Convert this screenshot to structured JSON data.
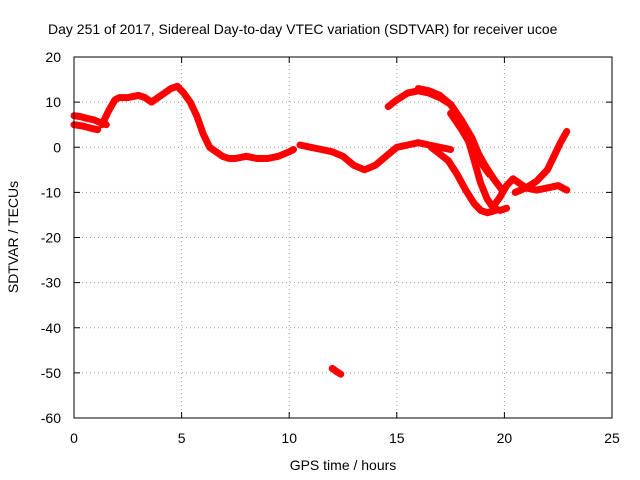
{
  "chart_data": {
    "type": "scatter",
    "title": "Day 251 of 2017, Sidereal Day-to-day VTEC variation (SDTVAR) for receiver ucoe",
    "xlabel": "GPS time / hours",
    "ylabel": "SDTVAR / TECUs",
    "xlim": [
      0,
      25
    ],
    "ylim": [
      -60,
      20
    ],
    "xticks": [
      0,
      5,
      10,
      15,
      20,
      25
    ],
    "yticks": [
      -60,
      -50,
      -40,
      -30,
      -20,
      -10,
      0,
      10,
      20
    ],
    "grid": true,
    "marker": "plus",
    "color": "#ff0000",
    "series": [
      {
        "name": "track-1",
        "x": [
          0.0,
          0.3,
          0.6,
          0.9,
          1.2,
          1.5
        ],
        "y": [
          7.0,
          6.8,
          6.4,
          6.1,
          5.5,
          5.0
        ]
      },
      {
        "name": "track-2",
        "x": [
          0.0,
          0.4,
          0.8,
          1.1
        ],
        "y": [
          5.0,
          4.7,
          4.2,
          3.9
        ]
      },
      {
        "name": "track-3",
        "x": [
          1.3,
          1.6,
          1.9,
          2.1,
          2.5,
          3.0,
          3.3,
          3.6,
          3.9,
          4.2,
          4.5,
          4.8,
          5.1,
          5.4,
          5.7,
          6.0,
          6.3,
          6.6,
          6.9,
          7.2,
          7.5,
          8.0,
          8.5,
          9.0,
          9.5,
          10.0,
          10.2
        ],
        "y": [
          5.0,
          8.0,
          10.5,
          11.0,
          11.0,
          11.5,
          11.0,
          10.0,
          11.0,
          12.0,
          13.0,
          13.5,
          12.0,
          10.0,
          7.0,
          3.0,
          0.0,
          -1.0,
          -2.0,
          -2.5,
          -2.5,
          -2.0,
          -2.5,
          -2.5,
          -2.0,
          -1.0,
          -0.5
        ]
      },
      {
        "name": "track-4",
        "x": [
          10.5,
          11.0,
          11.5,
          12.0,
          12.5,
          13.0,
          13.5,
          14.0,
          14.5,
          15.0,
          15.5,
          16.0,
          16.5,
          17.0,
          17.5
        ],
        "y": [
          0.5,
          0.0,
          -0.5,
          -1.0,
          -2.0,
          -4.0,
          -5.0,
          -4.0,
          -2.0,
          0.0,
          0.5,
          1.0,
          0.5,
          0.0,
          -0.5
        ]
      },
      {
        "name": "track-5",
        "x": [
          14.6,
          15.0,
          15.5,
          16.0,
          16.5,
          17.0,
          17.5,
          18.0,
          18.3,
          18.6,
          18.9,
          19.2,
          19.5,
          19.8,
          20.1
        ],
        "y": [
          9.0,
          10.5,
          12.0,
          12.5,
          12.0,
          11.0,
          9.5,
          6.0,
          2.0,
          -3.0,
          -8.0,
          -11.5,
          -13.5,
          -14.0,
          -13.5
        ]
      },
      {
        "name": "track-6",
        "x": [
          16.0,
          16.5,
          17.0,
          17.5,
          18.0,
          18.5,
          18.8,
          19.1,
          19.5,
          19.9
        ],
        "y": [
          13.0,
          12.5,
          11.5,
          9.5,
          6.0,
          2.0,
          -1.5,
          -4.0,
          -7.0,
          -9.5
        ]
      },
      {
        "name": "track-7",
        "x": [
          16.6,
          17.0,
          17.4,
          17.8,
          18.2,
          18.6,
          18.9,
          19.2,
          19.6
        ],
        "y": [
          0.0,
          -1.5,
          -3.0,
          -6.0,
          -9.5,
          -12.5,
          -14.0,
          -14.5,
          -14.0
        ]
      },
      {
        "name": "track-8",
        "x": [
          17.5,
          18.0,
          18.5,
          19.0,
          19.3
        ],
        "y": [
          7.5,
          4.0,
          0.0,
          -4.0,
          -6.0
        ]
      },
      {
        "name": "track-9",
        "x": [
          19.5,
          19.8,
          20.1,
          20.4,
          20.7,
          21.0,
          21.5,
          22.0,
          22.5,
          22.9
        ],
        "y": [
          -13.0,
          -11.0,
          -8.5,
          -7.0,
          -8.0,
          -9.0,
          -9.5,
          -9.0,
          -8.5,
          -9.5
        ]
      },
      {
        "name": "track-10",
        "x": [
          20.5,
          21.0,
          21.5,
          22.0,
          22.3,
          22.6,
          22.9
        ],
        "y": [
          -10.0,
          -9.0,
          -7.5,
          -5.0,
          -2.0,
          1.0,
          3.5
        ]
      },
      {
        "name": "track-11",
        "x": [
          12.0,
          12.2,
          12.4
        ],
        "y": [
          -49.0,
          -49.7,
          -50.3
        ]
      }
    ]
  }
}
